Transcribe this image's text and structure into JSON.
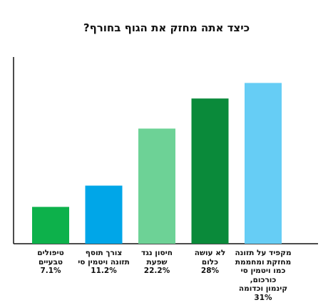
{
  "chart_data": {
    "type": "bar",
    "title": "כיצד אתה מחזק את הגוף בחורף?",
    "ylim": [
      0,
      36
    ],
    "grid": false,
    "categories": [
      [
        "טיפולים",
        "טבעיים"
      ],
      [
        "צורך תוסף",
        "תזונה ויטמין סי"
      ],
      [
        "חיסון נגד",
        "שפעת"
      ],
      [
        "לא עושה",
        "כלום"
      ],
      [
        "מקפיד על תזונה",
        "מחזקת ומחממת",
        "כמו ויטמין סי כורכום,",
        "קינמון וכדומה"
      ]
    ],
    "values": [
      7.1,
      11.2,
      22.2,
      28,
      31
    ],
    "value_labels": [
      "7.1%",
      "11.2%",
      "22.2%",
      "28%",
      "31%"
    ],
    "colors": [
      "#0db14b",
      "#00a6e8",
      "#6dd296",
      "#0a8a3a",
      "#66cdf5"
    ]
  }
}
